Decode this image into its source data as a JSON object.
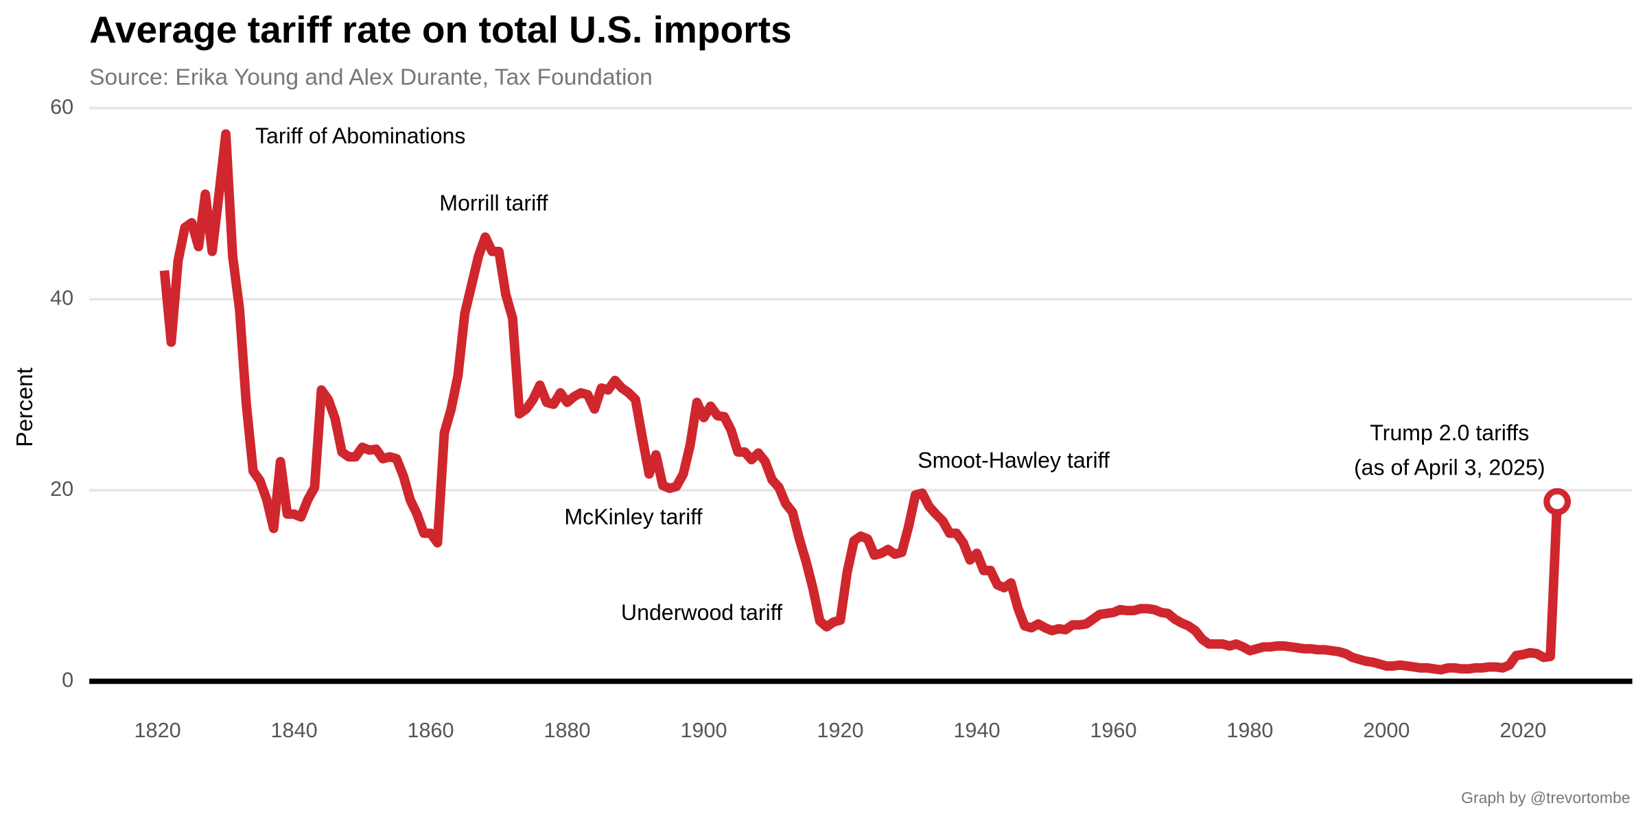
{
  "chart_data": {
    "type": "line",
    "title": "Average tariff rate on total U.S. imports",
    "subtitle": "Source: Erika Young and Alex Durante, Tax Foundation",
    "y_label": "Percent",
    "caption": "Graph by @trevortombe",
    "color": "#d0262d",
    "grid": true,
    "xlim": [
      1810,
      2036
    ],
    "xticks": [
      1820,
      1840,
      1860,
      1880,
      1900,
      1920,
      1940,
      1960,
      1980,
      2000,
      2020
    ],
    "ylim": [
      -3,
      60.3
    ],
    "yticks": [
      0,
      20,
      40,
      60
    ],
    "annotations": [
      "Tariff of Abominations",
      "Morrill tariff",
      "McKinley tariff",
      "Underwood tariff",
      "Smoot-Hawley tariff",
      "Trump 2.0 tariffs",
      "(as of April 3, 2025)"
    ],
    "x": [
      1821,
      1822,
      1823,
      1824,
      1825,
      1826,
      1827,
      1828,
      1829,
      1830,
      1831,
      1832,
      1833,
      1834,
      1835,
      1836,
      1837,
      1838,
      1839,
      1840,
      1841,
      1842,
      1843,
      1844,
      1845,
      1846,
      1847,
      1848,
      1849,
      1850,
      1851,
      1852,
      1853,
      1854,
      1855,
      1856,
      1857,
      1858,
      1859,
      1860,
      1861,
      1862,
      1863,
      1864,
      1865,
      1866,
      1867,
      1868,
      1869,
      1870,
      1871,
      1872,
      1873,
      1874,
      1875,
      1876,
      1877,
      1878,
      1879,
      1880,
      1881,
      1882,
      1883,
      1884,
      1885,
      1886,
      1887,
      1888,
      1889,
      1890,
      1891,
      1892,
      1893,
      1894,
      1895,
      1896,
      1897,
      1898,
      1899,
      1900,
      1901,
      1902,
      1903,
      1904,
      1905,
      1906,
      1907,
      1908,
      1909,
      1910,
      1911,
      1912,
      1913,
      1914,
      1915,
      1916,
      1917,
      1918,
      1919,
      1920,
      1921,
      1922,
      1923,
      1924,
      1925,
      1926,
      1927,
      1928,
      1929,
      1930,
      1931,
      1932,
      1933,
      1934,
      1935,
      1936,
      1937,
      1938,
      1939,
      1940,
      1941,
      1942,
      1943,
      1944,
      1945,
      1946,
      1947,
      1948,
      1949,
      1950,
      1951,
      1952,
      1953,
      1954,
      1955,
      1956,
      1957,
      1958,
      1959,
      1960,
      1961,
      1962,
      1963,
      1964,
      1965,
      1966,
      1967,
      1968,
      1969,
      1970,
      1971,
      1972,
      1973,
      1974,
      1975,
      1976,
      1977,
      1978,
      1979,
      1980,
      1981,
      1982,
      1983,
      1984,
      1985,
      1986,
      1987,
      1988,
      1989,
      1990,
      1991,
      1992,
      1993,
      1994,
      1995,
      1996,
      1997,
      1998,
      1999,
      2000,
      2001,
      2002,
      2003,
      2004,
      2005,
      2006,
      2007,
      2008,
      2009,
      2010,
      2011,
      2012,
      2013,
      2014,
      2015,
      2016,
      2017,
      2018,
      2019,
      2020,
      2021,
      2022,
      2023,
      2024,
      2025
    ],
    "values": [
      43,
      35.5,
      44,
      47.5,
      48,
      45.5,
      51,
      45,
      51,
      57.3,
      44.5,
      39,
      29,
      22,
      21,
      19,
      16,
      23,
      17.5,
      17.5,
      17.2,
      19,
      20.3,
      30.5,
      29.5,
      27.5,
      24,
      23.5,
      23.5,
      24.5,
      24.2,
      24.3,
      23.3,
      23.5,
      23.3,
      21.5,
      19,
      17.5,
      15.5,
      15.5,
      14.5,
      26,
      28.5,
      32,
      38.5,
      41.5,
      44.5,
      46.5,
      45,
      45,
      40.5,
      38,
      28,
      28.5,
      29.5,
      31,
      29.2,
      29,
      30.2,
      29.2,
      29.8,
      30.2,
      30,
      28.5,
      30.7,
      30.5,
      31.5,
      30.7,
      30.2,
      29.5,
      25.5,
      21.7,
      23.7,
      20.5,
      20.2,
      20.4,
      21.7,
      24.7,
      29.2,
      27.6,
      28.8,
      27.8,
      27.7,
      26.3,
      24,
      24,
      23.2,
      23.9,
      23,
      21.1,
      20.3,
      18.6,
      17.7,
      14.9,
      12.5,
      9.7,
      6.3,
      5.7,
      6.2,
      6.4,
      11.4,
      14.7,
      15.2,
      14.9,
      13.2,
      13.4,
      13.8,
      13.3,
      13.5,
      16.2,
      19.5,
      19.7,
      18.3,
      17.5,
      16.8,
      15.5,
      15.5,
      14.5,
      12.7,
      13.4,
      11.6,
      11.6,
      10.1,
      9.8,
      10.3,
      7.7,
      5.8,
      5.6,
      6,
      5.6,
      5.3,
      5.5,
      5.4,
      5.9,
      5.9,
      6,
      6.5,
      7,
      7.1,
      7.2,
      7.5,
      7.4,
      7.4,
      7.6,
      7.6,
      7.5,
      7.2,
      7.1,
      6.5,
      6.1,
      5.8,
      5.3,
      4.4,
      3.9,
      3.9,
      3.9,
      3.7,
      3.9,
      3.6,
      3.2,
      3.4,
      3.6,
      3.6,
      3.7,
      3.7,
      3.6,
      3.5,
      3.4,
      3.4,
      3.3,
      3.3,
      3.2,
      3.1,
      2.9,
      2.5,
      2.3,
      2.1,
      2,
      1.8,
      1.6,
      1.6,
      1.7,
      1.6,
      1.5,
      1.4,
      1.4,
      1.3,
      1.2,
      1.4,
      1.4,
      1.3,
      1.3,
      1.4,
      1.4,
      1.5,
      1.5,
      1.4,
      1.7,
      2.7,
      2.8,
      3,
      2.9,
      2.5,
      2.6,
      18.8
    ]
  }
}
